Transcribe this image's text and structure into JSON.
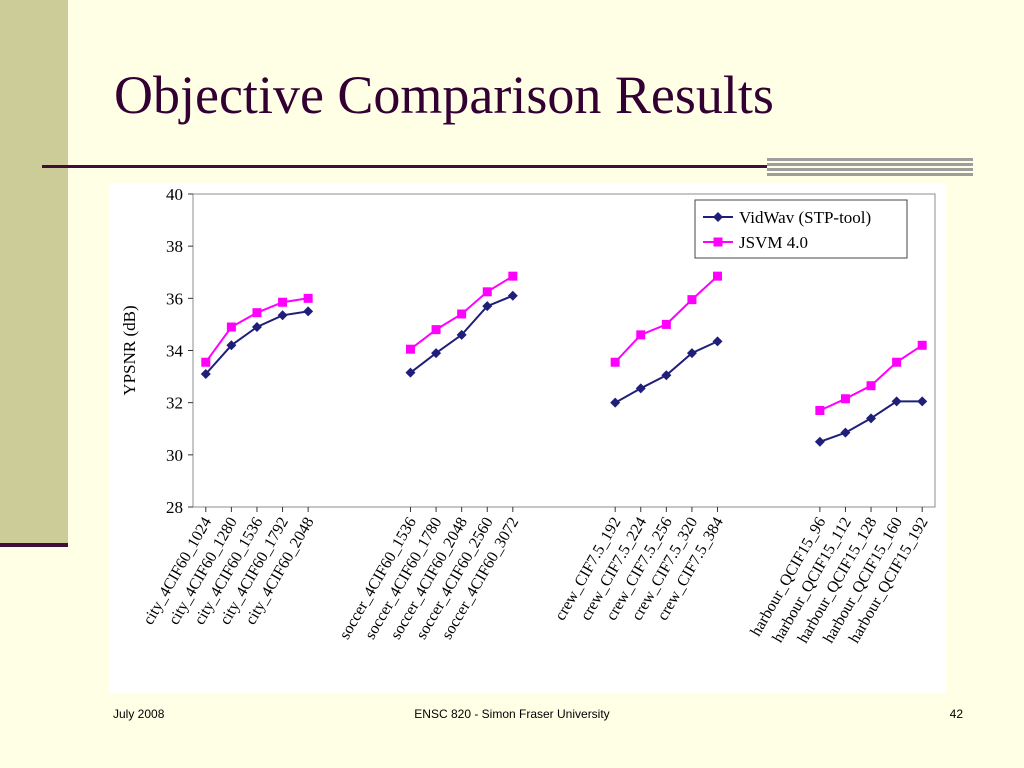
{
  "slide": {
    "title": "Objective Comparison Results",
    "footer_left": "July 2008",
    "footer_center": "ENSC 820 - Simon Fraser University",
    "page_number": "42"
  },
  "chart_data": {
    "type": "line",
    "title": "",
    "xlabel": "",
    "ylabel": "YPSNR (dB)",
    "ylim": [
      28,
      40
    ],
    "yticks": [
      28,
      30,
      32,
      34,
      36,
      38,
      40
    ],
    "grid": false,
    "legend_position": "top-right",
    "categories": [
      "city_4CIF60_1024",
      "city_4CIF60_1280",
      "city_4CIF60_1536",
      "city_4CIF60_1792",
      "city_4CIF60_2048",
      "soccer_4CIF60_1536",
      "soccer_4CIF60_1780",
      "soccer_4CIF60_2048",
      "soccer_4CIF60_2560",
      "soccer_4CIF60_3072",
      "crew_CIF7.5_192",
      "crew_CIF7.5_224",
      "crew_CIF7.5_256",
      "crew_CIF7.5_320",
      "crew_CIF7.5_384",
      "harbour_QCIF15_96",
      "harbour_QCIF15_112",
      "harbour_QCIF15_128",
      "harbour_QCIF15_160",
      "harbour_QCIF15_192"
    ],
    "series": [
      {
        "name": "VidWav (STP-tool)",
        "color": "#1F1F7A",
        "marker": "diamond",
        "values": [
          33.1,
          34.2,
          34.9,
          35.35,
          35.5,
          33.15,
          33.9,
          34.6,
          35.7,
          36.1,
          32.0,
          32.55,
          33.05,
          33.9,
          34.35,
          30.5,
          30.85,
          31.4,
          32.05,
          32.05
        ]
      },
      {
        "name": "JSVM 4.0",
        "color": "#FF00FF",
        "marker": "square",
        "values": [
          33.55,
          34.9,
          35.45,
          35.85,
          36.0,
          34.05,
          34.8,
          35.4,
          36.25,
          36.85,
          33.55,
          34.6,
          35.0,
          35.95,
          36.85,
          31.7,
          32.15,
          32.65,
          33.55,
          34.2
        ]
      }
    ]
  }
}
